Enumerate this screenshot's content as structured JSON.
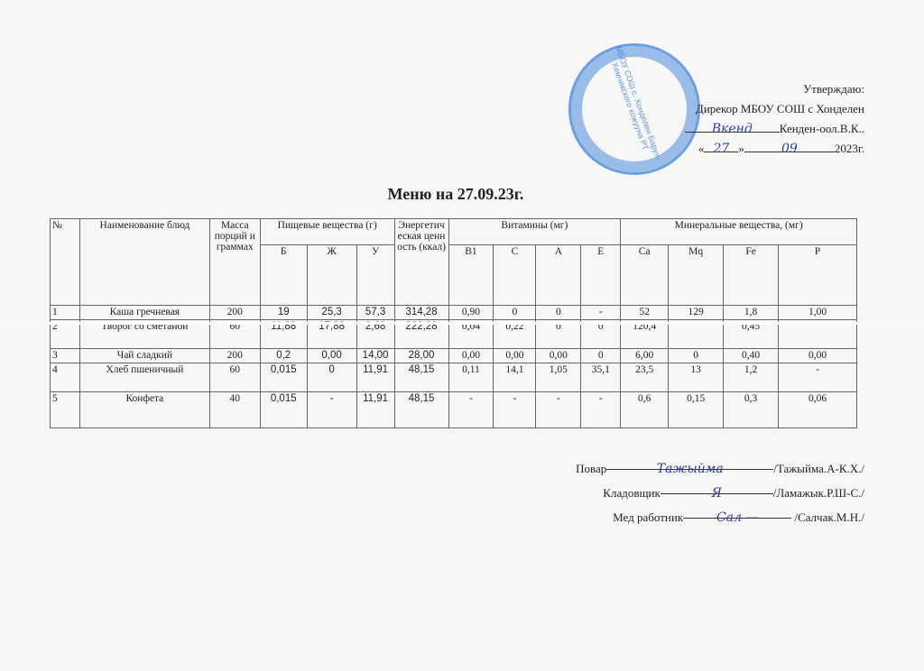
{
  "approval": {
    "line1": "Утверждаю:",
    "line2": "Дирекор  МБОУ СОШ с Хонделен",
    "director_name": "Кенден-оол.В.К..",
    "director_signature": "Вкенд",
    "date_day": "27",
    "date_month": "09",
    "date_open": "«",
    "date_close": "»",
    "date_year": "2023г."
  },
  "stamp": {
    "text": "МБОУ СОШ с. Хонделен Барун-Хемчикского кожууна РТ",
    "color": "#3c82dc"
  },
  "title": "Меню на 27.09.23г.",
  "table": {
    "headers": {
      "num": "№",
      "name": "Наименование блюд",
      "mass": "Масса порций и граммах",
      "nutrients": "Пищевые вещества (г)",
      "energy": "Энергетическая ценность (ккал)",
      "vitamins": "Витамины (мг)",
      "minerals": "Минеральные вещества, (мг)",
      "sub": [
        "Б",
        "Ж",
        "У",
        "B1",
        "C",
        "A",
        "E",
        "Ca",
        "Mq",
        "Fe",
        "P"
      ]
    },
    "rows": [
      [
        "1",
        "Каша гречневая",
        "200",
        "19",
        "25,3",
        "57,3",
        "314,28",
        "0,90",
        "0",
        "0",
        "-",
        "52",
        "129",
        "1,8",
        "1,00"
      ],
      [
        "2",
        "Творог со сметаной",
        "60",
        "11,88",
        "17,88",
        "2,68",
        "222,28",
        "0,04",
        "0,22",
        "0",
        "0",
        "120,4",
        "",
        "0,45",
        ""
      ],
      [
        "3",
        "Чай сладкий",
        "200",
        "0,2",
        "0,00",
        "14,00",
        "28,00",
        "0,00",
        "0,00",
        "0,00",
        "0",
        "6,00",
        "0",
        "0,40",
        "0,00"
      ],
      [
        "4",
        "Хлеб пшеничный",
        "60",
        "0,015",
        "0",
        "11,91",
        "48,15",
        "0,11",
        "14,1",
        "1,05",
        "35,1",
        "23,5",
        "13",
        "1,2",
        "-"
      ],
      [
        "5",
        "Конфета",
        "40",
        "0,015",
        "-",
        "11,91",
        "48,15",
        "-",
        "-",
        "-",
        "-",
        "0,6",
        "0,15",
        "0,3",
        "0,06"
      ]
    ]
  },
  "signatures": [
    {
      "role": "Повар",
      "signature": "Тажыйма",
      "name": "/Тажыйма.А-К.Х./"
    },
    {
      "role": "Кладовщик",
      "signature": "Я",
      "name": "/Ламажык.Р.Ш-С./"
    },
    {
      "role": "Мед работник",
      "signature": "Сал —",
      "name": " /Салчак.М.Н./"
    }
  ]
}
